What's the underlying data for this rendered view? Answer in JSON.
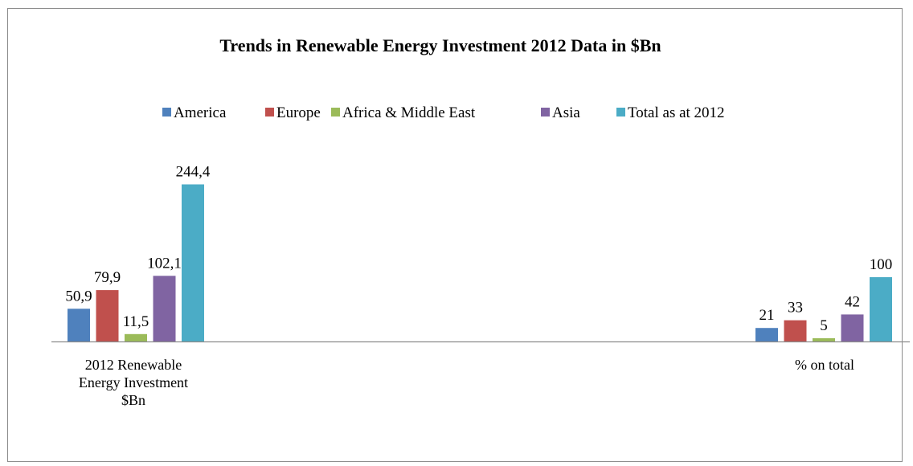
{
  "chart_data": {
    "type": "bar",
    "title": "Trends in Renewable Energy Investment 2012 Data in $Bn",
    "categories": [
      [
        "2012 Renewable",
        "Energy Investment",
        "$Bn"
      ],
      [
        "% on total"
      ]
    ],
    "series": [
      {
        "name": "America",
        "color": "#4F81BD",
        "values": [
          50.9,
          21
        ],
        "labels": [
          "50,9",
          "21"
        ]
      },
      {
        "name": "Europe",
        "color": "#C0504D",
        "values": [
          79.9,
          33
        ],
        "labels": [
          "79,9",
          "33"
        ]
      },
      {
        "name": "Africa & Middle East",
        "color": "#9BBB59",
        "values": [
          11.5,
          5
        ],
        "labels": [
          "11,5",
          "5"
        ]
      },
      {
        "name": "Asia",
        "color": "#8064A2",
        "values": [
          102.1,
          42
        ],
        "labels": [
          "102,1",
          "42"
        ]
      },
      {
        "name": "Total as at 2012",
        "color": "#4BACC6",
        "values": [
          244.4,
          100
        ],
        "labels": [
          "244,4",
          "100"
        ]
      }
    ],
    "xlabel": "",
    "ylabel": "",
    "ylim": [
      0,
      270
    ],
    "grid": false,
    "legend_position": "top"
  }
}
